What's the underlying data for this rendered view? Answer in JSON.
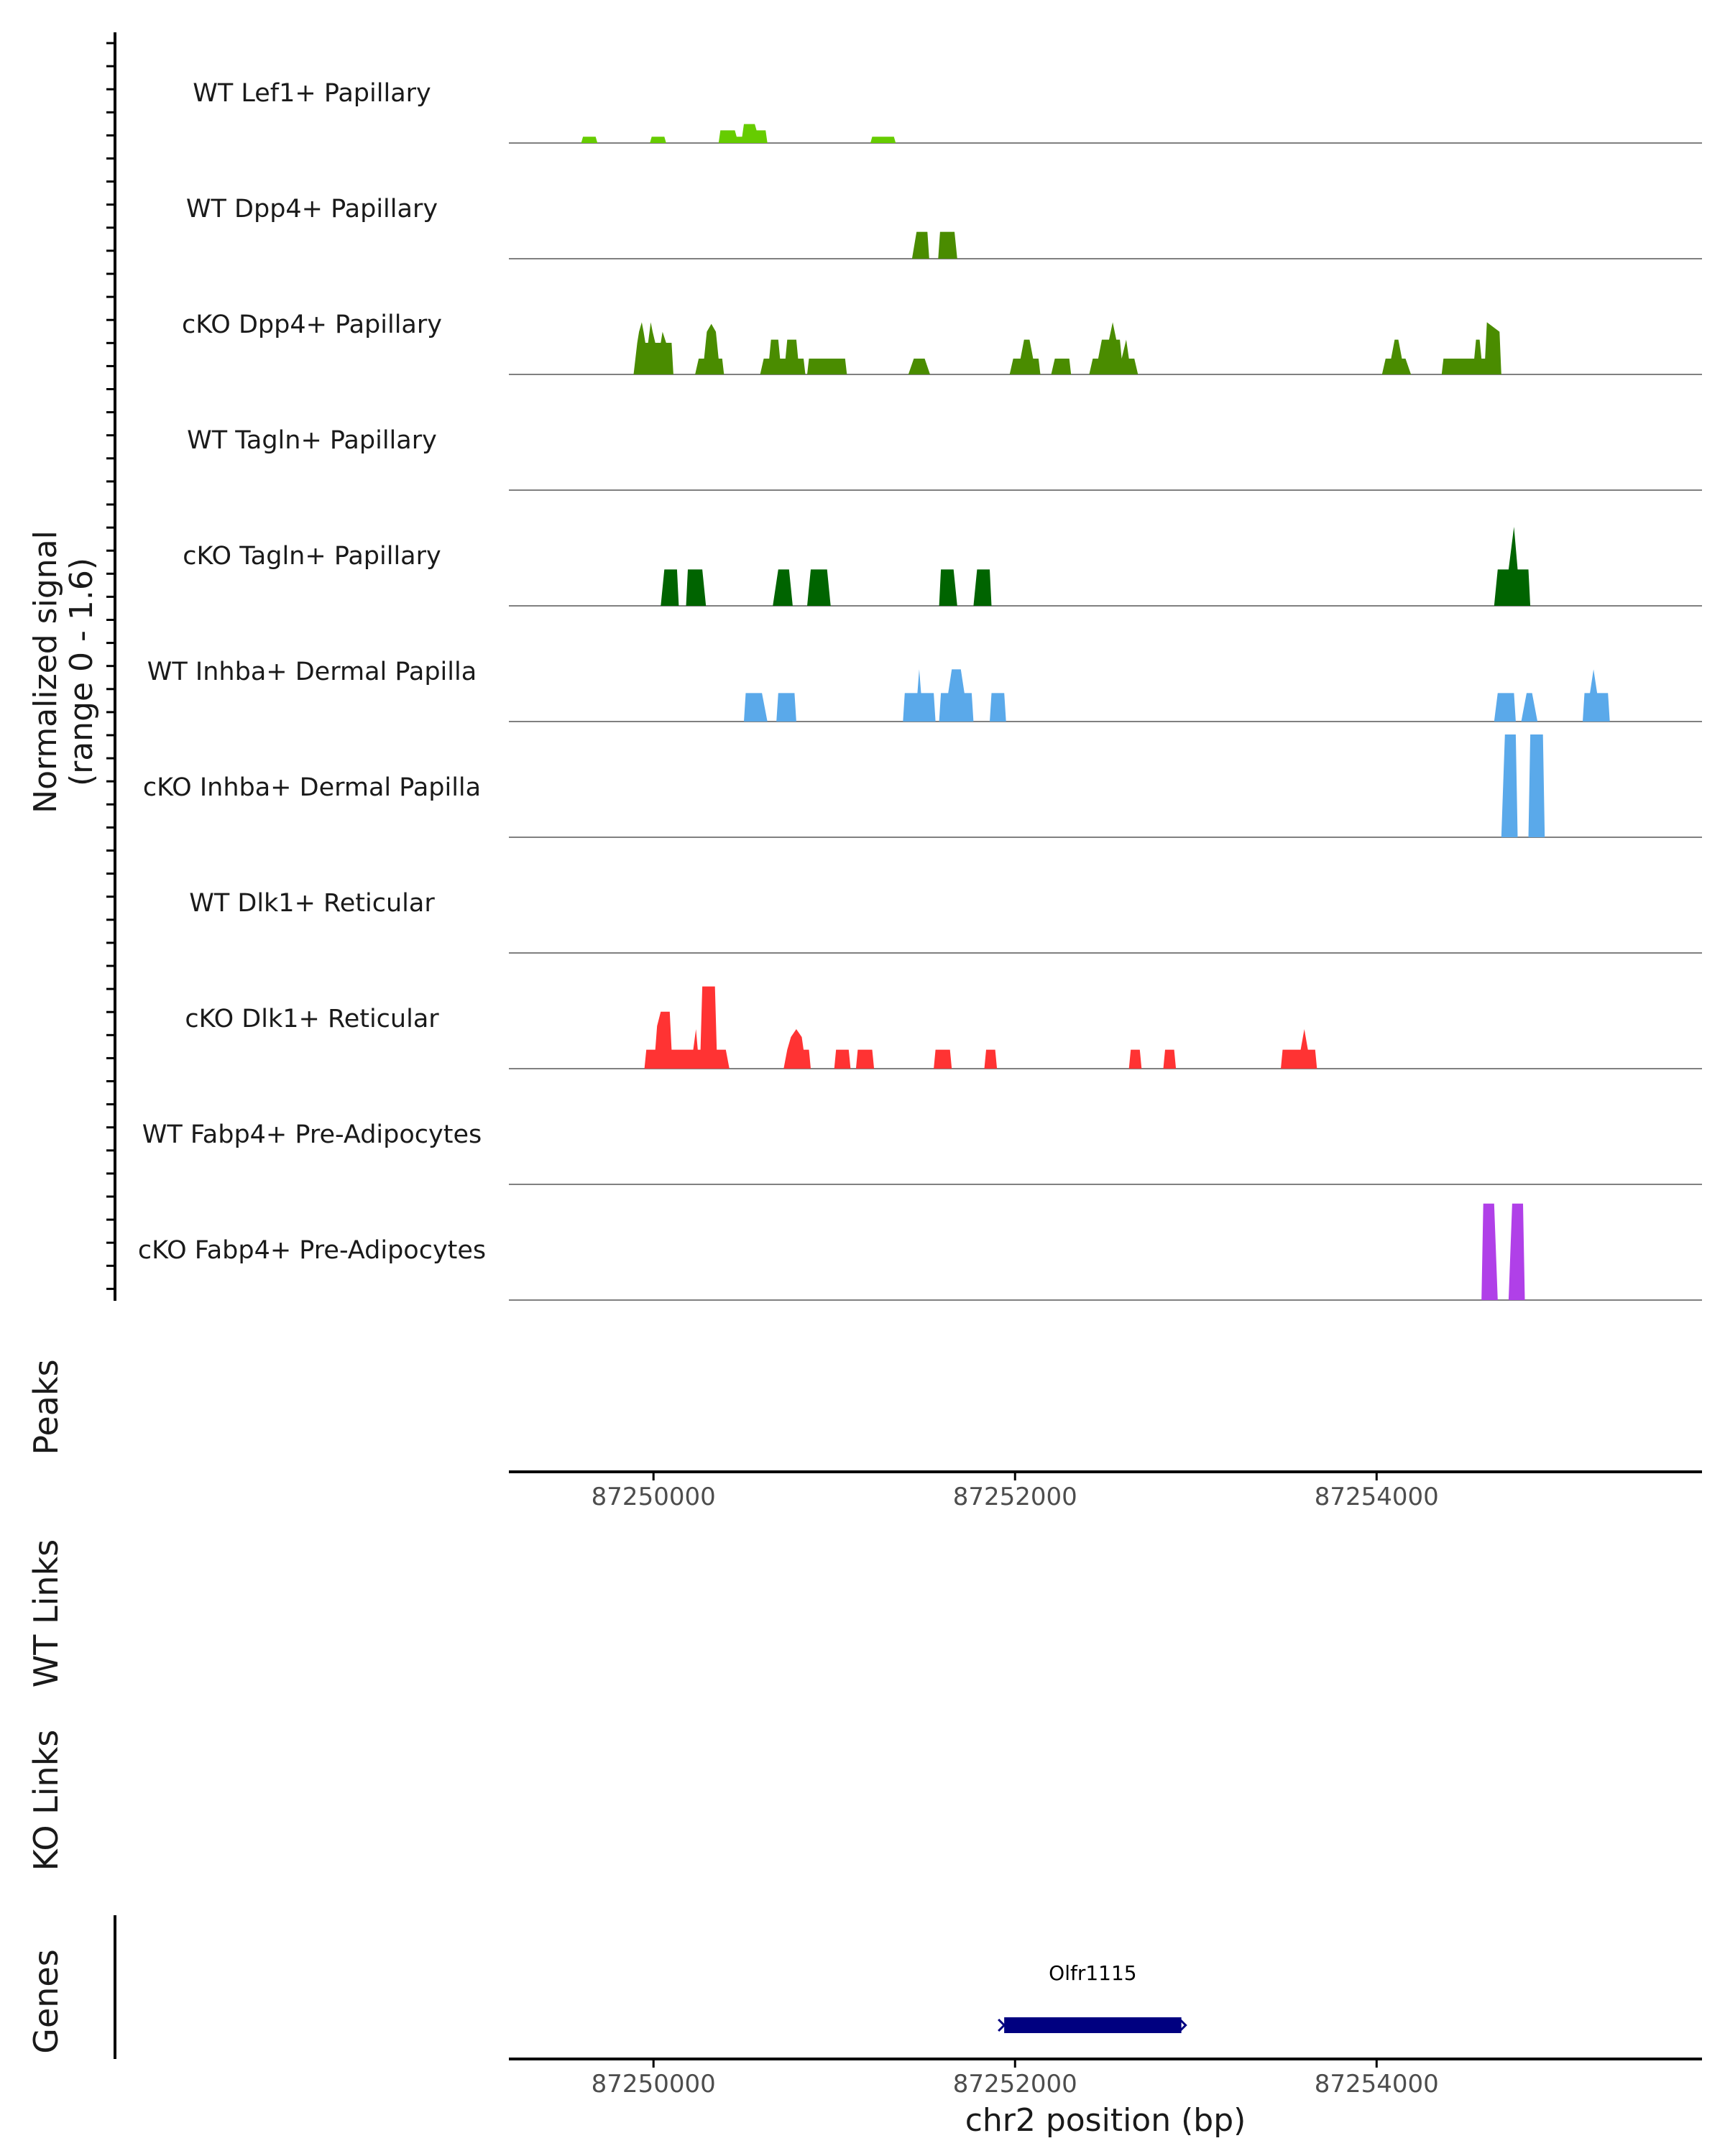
{
  "colors": {
    "lef1": "#66CC00",
    "dpp4": "#4A8C00",
    "tagln": "#006400",
    "inhba": "#5AA9EA",
    "dlk1": "#FF3333",
    "fabp4": "#B040E8",
    "gene": "#000080",
    "baseline": "#808080",
    "axis": "#000000"
  },
  "chart_data": {
    "type": "area",
    "ylabel_line1": "Normalized signal",
    "ylabel_line2": "(range 0 - 1.6)",
    "y_range": [
      0,
      1.6
    ],
    "x_range": [
      87249200,
      87255800
    ],
    "xlabel": "chr2 position (bp)",
    "x_ticks": [
      87250000,
      87252000,
      87254000
    ],
    "x_tick_labels": [
      "87250000",
      "87252000",
      "87254000"
    ],
    "panel_labels": [
      "Peaks",
      "WT Links",
      "KO Links",
      "Genes"
    ],
    "tracks": [
      {
        "name": "WT Lef1+ Papillary",
        "color": "lef1",
        "peaks": [
          [
            87249600,
            0.0
          ],
          [
            87249610,
            0.08
          ],
          [
            87249680,
            0.08
          ],
          [
            87249690,
            0.0
          ],
          [
            87249980,
            0.0
          ],
          [
            87249990,
            0.08
          ],
          [
            87250060,
            0.08
          ],
          [
            87250070,
            0.0
          ],
          [
            87250360,
            0.0
          ],
          [
            87250370,
            0.16
          ],
          [
            87250450,
            0.16
          ],
          [
            87250460,
            0.08
          ],
          [
            87250490,
            0.08
          ],
          [
            87250500,
            0.24
          ],
          [
            87250560,
            0.24
          ],
          [
            87250570,
            0.16
          ],
          [
            87250620,
            0.16
          ],
          [
            87250630,
            0.0
          ],
          [
            87251200,
            0.0
          ],
          [
            87251210,
            0.08
          ],
          [
            87251330,
            0.08
          ],
          [
            87251340,
            0.0
          ]
        ]
      },
      {
        "name": "WT Dpp4+ Papillary",
        "color": "dpp4",
        "peaks": [
          [
            87251430,
            0.0
          ],
          [
            87251455,
            0.34
          ],
          [
            87251515,
            0.34
          ],
          [
            87251525,
            0.0
          ],
          [
            87251575,
            0.0
          ],
          [
            87251585,
            0.34
          ],
          [
            87251665,
            0.34
          ],
          [
            87251680,
            0.0
          ]
        ]
      },
      {
        "name": "cKO Dpp4+ Papillary",
        "color": "dpp4",
        "peaks": [
          [
            87249890,
            0.0
          ],
          [
            87249910,
            0.4
          ],
          [
            87249920,
            0.54
          ],
          [
            87249935,
            0.66
          ],
          [
            87249945,
            0.54
          ],
          [
            87249955,
            0.4
          ],
          [
            87249970,
            0.4
          ],
          [
            87249985,
            0.66
          ],
          [
            87249995,
            0.54
          ],
          [
            87250010,
            0.4
          ],
          [
            87250040,
            0.4
          ],
          [
            87250050,
            0.54
          ],
          [
            87250070,
            0.4
          ],
          [
            87250100,
            0.4
          ],
          [
            87250110,
            0.0
          ],
          [
            87250230,
            0.0
          ],
          [
            87250250,
            0.2
          ],
          [
            87250280,
            0.2
          ],
          [
            87250295,
            0.54
          ],
          [
            87250320,
            0.64
          ],
          [
            87250345,
            0.54
          ],
          [
            87250360,
            0.2
          ],
          [
            87250380,
            0.2
          ],
          [
            87250390,
            0.0
          ],
          [
            87250590,
            0.0
          ],
          [
            87250610,
            0.2
          ],
          [
            87250640,
            0.2
          ],
          [
            87250650,
            0.44
          ],
          [
            87250690,
            0.44
          ],
          [
            87250700,
            0.2
          ],
          [
            87250730,
            0.2
          ],
          [
            87250740,
            0.44
          ],
          [
            87250790,
            0.44
          ],
          [
            87250800,
            0.2
          ],
          [
            87250830,
            0.2
          ],
          [
            87250840,
            0.0
          ],
          [
            87250850,
            0.0
          ],
          [
            87250860,
            0.2
          ],
          [
            87251060,
            0.2
          ],
          [
            87251070,
            0.0
          ],
          [
            87251410,
            0.0
          ],
          [
            87251440,
            0.2
          ],
          [
            87251500,
            0.2
          ],
          [
            87251530,
            0.0
          ],
          [
            87251970,
            0.0
          ],
          [
            87251990,
            0.2
          ],
          [
            87252030,
            0.2
          ],
          [
            87252050,
            0.44
          ],
          [
            87252080,
            0.44
          ],
          [
            87252100,
            0.2
          ],
          [
            87252130,
            0.2
          ],
          [
            87252140,
            0.0
          ],
          [
            87252200,
            0.0
          ],
          [
            87252220,
            0.2
          ],
          [
            87252300,
            0.2
          ],
          [
            87252310,
            0.0
          ],
          [
            87252410,
            0.0
          ],
          [
            87252430,
            0.2
          ],
          [
            87252460,
            0.2
          ],
          [
            87252480,
            0.44
          ],
          [
            87252520,
            0.44
          ],
          [
            87252540,
            0.66
          ],
          [
            87252560,
            0.44
          ],
          [
            87252580,
            0.44
          ],
          [
            87252590,
            0.2
          ],
          [
            87252615,
            0.44
          ],
          [
            87252630,
            0.2
          ],
          [
            87252660,
            0.2
          ],
          [
            87252680,
            0.0
          ],
          [
            87254030,
            0.0
          ],
          [
            87254050,
            0.2
          ],
          [
            87254080,
            0.2
          ],
          [
            87254100,
            0.44
          ],
          [
            87254120,
            0.44
          ],
          [
            87254140,
            0.2
          ],
          [
            87254160,
            0.2
          ],
          [
            87254190,
            0.0
          ],
          [
            87254360,
            0.0
          ],
          [
            87254370,
            0.2
          ],
          [
            87254540,
            0.2
          ],
          [
            87254550,
            0.44
          ],
          [
            87254570,
            0.44
          ],
          [
            87254580,
            0.2
          ],
          [
            87254600,
            0.2
          ],
          [
            87254610,
            0.66
          ],
          [
            87254680,
            0.54
          ],
          [
            87254690,
            0.0
          ]
        ]
      },
      {
        "name": "WT Tagln+ Papillary",
        "color": "tagln",
        "peaks": []
      },
      {
        "name": "cKO Tagln+ Papillary",
        "color": "tagln",
        "peaks": [
          [
            87250040,
            0.0
          ],
          [
            87250060,
            0.46
          ],
          [
            87250130,
            0.46
          ],
          [
            87250140,
            0.0
          ],
          [
            87250180,
            0.0
          ],
          [
            87250190,
            0.46
          ],
          [
            87250270,
            0.46
          ],
          [
            87250290,
            0.0
          ],
          [
            87250660,
            0.0
          ],
          [
            87250690,
            0.46
          ],
          [
            87250750,
            0.46
          ],
          [
            87250770,
            0.0
          ],
          [
            87250850,
            0.0
          ],
          [
            87250870,
            0.46
          ],
          [
            87250960,
            0.46
          ],
          [
            87250980,
            0.0
          ],
          [
            87251580,
            0.0
          ],
          [
            87251590,
            0.46
          ],
          [
            87251660,
            0.46
          ],
          [
            87251680,
            0.0
          ],
          [
            87251770,
            0.0
          ],
          [
            87251790,
            0.46
          ],
          [
            87251860,
            0.46
          ],
          [
            87251870,
            0.0
          ],
          [
            87254650,
            0.0
          ],
          [
            87254670,
            0.46
          ],
          [
            87254730,
            0.46
          ],
          [
            87254760,
            1.0
          ],
          [
            87254780,
            0.46
          ],
          [
            87254840,
            0.46
          ],
          [
            87254850,
            0.0
          ]
        ]
      },
      {
        "name": "WT Inhba+ Dermal Papilla",
        "color": "inhba",
        "peaks": [
          [
            87250500,
            0.0
          ],
          [
            87250510,
            0.36
          ],
          [
            87250600,
            0.36
          ],
          [
            87250630,
            0.0
          ],
          [
            87250680,
            0.0
          ],
          [
            87250690,
            0.36
          ],
          [
            87250780,
            0.36
          ],
          [
            87250790,
            0.0
          ],
          [
            87251380,
            0.0
          ],
          [
            87251390,
            0.36
          ],
          [
            87251460,
            0.36
          ],
          [
            87251470,
            0.66
          ],
          [
            87251480,
            0.36
          ],
          [
            87251550,
            0.36
          ],
          [
            87251560,
            0.0
          ],
          [
            87251580,
            0.0
          ],
          [
            87251590,
            0.36
          ],
          [
            87251630,
            0.36
          ],
          [
            87251650,
            0.66
          ],
          [
            87251700,
            0.66
          ],
          [
            87251720,
            0.36
          ],
          [
            87251760,
            0.36
          ],
          [
            87251770,
            0.0
          ],
          [
            87251860,
            0.0
          ],
          [
            87251870,
            0.36
          ],
          [
            87251940,
            0.36
          ],
          [
            87251950,
            0.0
          ],
          [
            87254650,
            0.0
          ],
          [
            87254670,
            0.36
          ],
          [
            87254760,
            0.36
          ],
          [
            87254770,
            0.0
          ],
          [
            87254800,
            0.0
          ],
          [
            87254830,
            0.36
          ],
          [
            87254860,
            0.36
          ],
          [
            87254890,
            0.0
          ],
          [
            87255140,
            0.0
          ],
          [
            87255150,
            0.36
          ],
          [
            87255180,
            0.36
          ],
          [
            87255200,
            0.66
          ],
          [
            87255220,
            0.36
          ],
          [
            87255280,
            0.36
          ],
          [
            87255290,
            0.0
          ]
        ]
      },
      {
        "name": "cKO Inhba+ Dermal Papilla",
        "color": "inhba",
        "peaks": [
          [
            87254690,
            0.0
          ],
          [
            87254710,
            1.3
          ],
          [
            87254770,
            1.3
          ],
          [
            87254780,
            0.0
          ],
          [
            87254840,
            0.0
          ],
          [
            87254850,
            1.3
          ],
          [
            87254920,
            1.3
          ],
          [
            87254930,
            0.0
          ]
        ]
      },
      {
        "name": "WT Dlk1+ Reticular",
        "color": "dlk1",
        "peaks": []
      },
      {
        "name": "cKO Dlk1+ Reticular",
        "color": "dlk1",
        "peaks": [
          [
            87249950,
            0.0
          ],
          [
            87249960,
            0.24
          ],
          [
            87250010,
            0.24
          ],
          [
            87250020,
            0.54
          ],
          [
            87250040,
            0.72
          ],
          [
            87250090,
            0.72
          ],
          [
            87250100,
            0.24
          ],
          [
            87250220,
            0.24
          ],
          [
            87250235,
            0.5
          ],
          [
            87250245,
            0.24
          ],
          [
            87250260,
            0.24
          ],
          [
            87250270,
            1.04
          ],
          [
            87250340,
            1.04
          ],
          [
            87250350,
            0.24
          ],
          [
            87250400,
            0.24
          ],
          [
            87250420,
            0.0
          ],
          [
            87250720,
            0.0
          ],
          [
            87250740,
            0.24
          ],
          [
            87250760,
            0.4
          ],
          [
            87250790,
            0.5
          ],
          [
            87250820,
            0.4
          ],
          [
            87250830,
            0.24
          ],
          [
            87250860,
            0.24
          ],
          [
            87250870,
            0.0
          ],
          [
            87251000,
            0.0
          ],
          [
            87251010,
            0.24
          ],
          [
            87251080,
            0.24
          ],
          [
            87251090,
            0.0
          ],
          [
            87251120,
            0.0
          ],
          [
            87251130,
            0.24
          ],
          [
            87251210,
            0.24
          ],
          [
            87251220,
            0.0
          ],
          [
            87251550,
            0.0
          ],
          [
            87251560,
            0.24
          ],
          [
            87251640,
            0.24
          ],
          [
            87251650,
            0.0
          ],
          [
            87251830,
            0.0
          ],
          [
            87251840,
            0.24
          ],
          [
            87251890,
            0.24
          ],
          [
            87251900,
            0.0
          ],
          [
            87252630,
            0.0
          ],
          [
            87252640,
            0.24
          ],
          [
            87252690,
            0.24
          ],
          [
            87252700,
            0.0
          ],
          [
            87252820,
            0.0
          ],
          [
            87252830,
            0.24
          ],
          [
            87252880,
            0.24
          ],
          [
            87252890,
            0.0
          ],
          [
            87253470,
            0.0
          ],
          [
            87253480,
            0.24
          ],
          [
            87253580,
            0.24
          ],
          [
            87253600,
            0.5
          ],
          [
            87253620,
            0.24
          ],
          [
            87253660,
            0.24
          ],
          [
            87253670,
            0.0
          ]
        ]
      },
      {
        "name": "WT Fabp4+ Pre-Adipocytes",
        "color": "fabp4",
        "peaks": []
      },
      {
        "name": "cKO Fabp4+ Pre-Adipocytes",
        "color": "fabp4",
        "peaks": [
          [
            87254580,
            0.0
          ],
          [
            87254590,
            1.22
          ],
          [
            87254650,
            1.22
          ],
          [
            87254670,
            0.0
          ],
          [
            87254730,
            0.0
          ],
          [
            87254750,
            1.22
          ],
          [
            87254810,
            1.22
          ],
          [
            87254820,
            0.0
          ]
        ]
      }
    ],
    "gene": {
      "name": "Olfr1115",
      "start": 87251940,
      "end": 87252920,
      "strand": "-"
    }
  }
}
